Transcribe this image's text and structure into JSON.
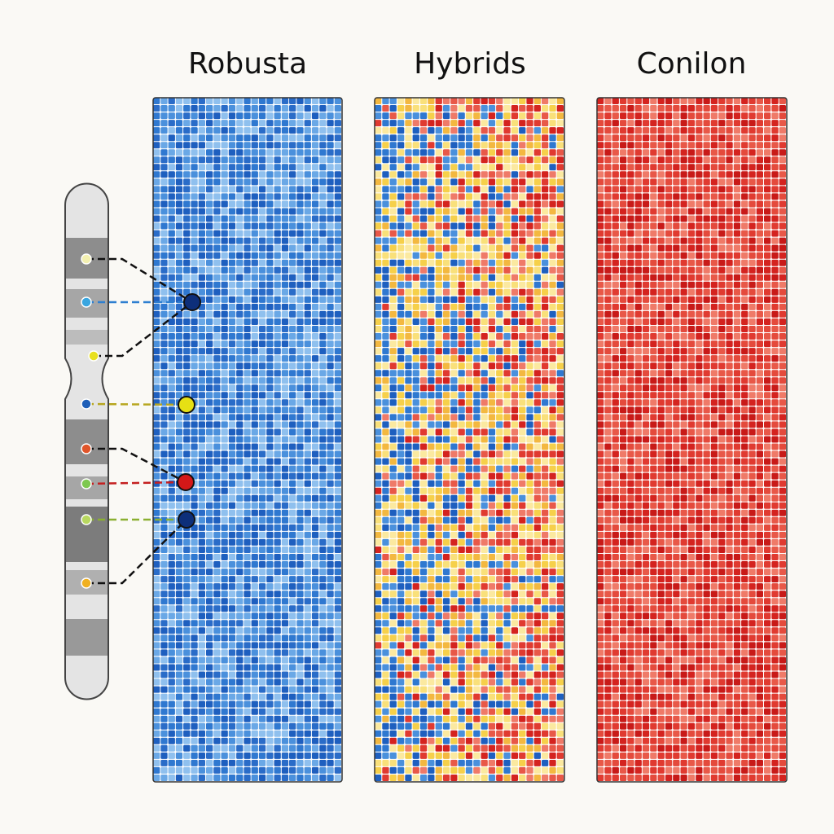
{
  "panels": [
    {
      "title": "Robusta"
    },
    {
      "title": "Hybrids"
    },
    {
      "title": "Conilon"
    }
  ]
}
